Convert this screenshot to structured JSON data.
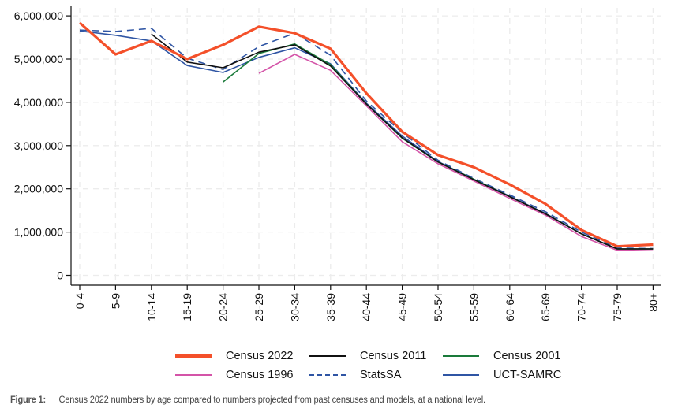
{
  "chart_data": {
    "type": "line",
    "title": "",
    "xlabel": "",
    "ylabel": "",
    "categories": [
      "0-4",
      "5-9",
      "10-14",
      "15-19",
      "20-24",
      "25-29",
      "30-34",
      "35-39",
      "40-44",
      "45-49",
      "50-54",
      "55-59",
      "60-64",
      "65-69",
      "70-74",
      "75-79",
      "80+"
    ],
    "ylim": [
      0,
      6000000
    ],
    "yticks": [
      0,
      1000000,
      2000000,
      3000000,
      4000000,
      5000000,
      6000000
    ],
    "ytick_labels": [
      "0",
      "1,000,000",
      "2,000,000",
      "3,000,000",
      "4,000,000",
      "5,000,000",
      "6,000,000"
    ],
    "grid": true,
    "legend_position": "bottom",
    "series": [
      {
        "name": "Census 2022",
        "color": "#f4502a",
        "style": "solid",
        "weight": "thick",
        "values": [
          5840000,
          5110000,
          5420000,
          5000000,
          5330000,
          5750000,
          5600000,
          5240000,
          4210000,
          3320000,
          2780000,
          2500000,
          2100000,
          1650000,
          1050000,
          670000,
          710000
        ]
      },
      {
        "name": "Census 2011",
        "color": "#111111",
        "style": "solid",
        "weight": "thin",
        "values": [
          null,
          null,
          5580000,
          4930000,
          4800000,
          5160000,
          5330000,
          4840000,
          3960000,
          3180000,
          2620000,
          2210000,
          1820000,
          1420000,
          960000,
          610000,
          610000
        ]
      },
      {
        "name": "Census 2001",
        "color": "#1a7a3a",
        "style": "solid",
        "weight": "thin",
        "values": [
          null,
          null,
          null,
          null,
          4470000,
          5130000,
          5350000,
          4870000,
          3960000,
          3170000,
          2620000,
          2220000,
          1820000,
          1420000,
          960000,
          610000,
          610000
        ]
      },
      {
        "name": "Census 1996",
        "color": "#d454a8",
        "style": "solid",
        "weight": "thin",
        "values": [
          null,
          null,
          null,
          null,
          null,
          4670000,
          5110000,
          4740000,
          3920000,
          3090000,
          2580000,
          2180000,
          1780000,
          1390000,
          900000,
          580000,
          600000
        ]
      },
      {
        "name": "StatsSA",
        "color": "#2f55a4",
        "style": "dashed",
        "weight": "thin",
        "values": [
          5670000,
          5640000,
          5710000,
          5020000,
          4760000,
          5290000,
          5600000,
          5090000,
          4030000,
          3300000,
          2660000,
          2240000,
          1860000,
          1470000,
          1000000,
          630000,
          620000
        ]
      },
      {
        "name": "UCT-SAMRC",
        "color": "#2f55a4",
        "style": "solid",
        "weight": "thin",
        "values": [
          5650000,
          5550000,
          5420000,
          4850000,
          4690000,
          5040000,
          5260000,
          4890000,
          3980000,
          3220000,
          2630000,
          2220000,
          1830000,
          1430000,
          960000,
          610000,
          610000
        ]
      }
    ]
  },
  "legend": {
    "items": [
      {
        "label": "Census 2022",
        "color": "#f4502a",
        "style": "solid",
        "thick": true
      },
      {
        "label": "Census 2011",
        "color": "#111111",
        "style": "solid",
        "thick": false
      },
      {
        "label": "Census 2001",
        "color": "#1a7a3a",
        "style": "solid",
        "thick": false
      },
      {
        "label": "Census 1996",
        "color": "#d454a8",
        "style": "solid",
        "thick": false
      },
      {
        "label": "StatsSA",
        "color": "#2f55a4",
        "style": "dashed",
        "thick": false
      },
      {
        "label": "UCT-SAMRC",
        "color": "#2f55a4",
        "style": "solid",
        "thick": false
      }
    ]
  },
  "caption": {
    "label": "Figure 1:",
    "text": "Census 2022 numbers by age compared to numbers projected from past censuses and models, at a national level."
  }
}
